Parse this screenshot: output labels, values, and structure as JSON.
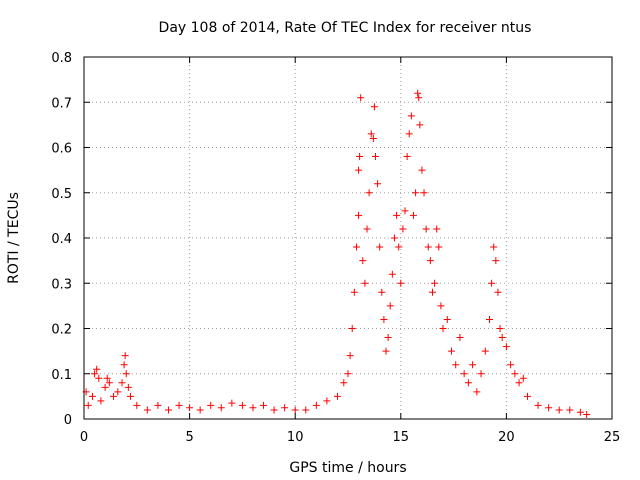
{
  "chart_data": {
    "type": "scatter",
    "title": "Day 108 of 2014, Rate Of TEC Index for receiver ntus",
    "xlabel": "GPS time / hours",
    "ylabel": "ROTI / TECUs",
    "xlim": [
      0,
      25
    ],
    "ylim": [
      0,
      0.8
    ],
    "grid": true,
    "marker": "+",
    "color": "#ff0000",
    "x_ticks": [
      {
        "value": 0,
        "label": "0"
      },
      {
        "value": 5,
        "label": "5"
      },
      {
        "value": 10,
        "label": "10"
      },
      {
        "value": 15,
        "label": "15"
      },
      {
        "value": 20,
        "label": "20"
      },
      {
        "value": 25,
        "label": "25"
      }
    ],
    "y_ticks": [
      {
        "value": 0,
        "label": "0"
      },
      {
        "value": 0.1,
        "label": "0.1"
      },
      {
        "value": 0.2,
        "label": "0.2"
      },
      {
        "value": 0.3,
        "label": "0.3"
      },
      {
        "value": 0.4,
        "label": "0.4"
      },
      {
        "value": 0.5,
        "label": "0.5"
      },
      {
        "value": 0.6,
        "label": "0.6"
      },
      {
        "value": 0.7,
        "label": "0.7"
      },
      {
        "value": 0.8,
        "label": "0.8"
      }
    ],
    "series": [
      {
        "name": "ROTI",
        "points": [
          [
            0.1,
            0.06
          ],
          [
            0.2,
            0.03
          ],
          [
            0.4,
            0.05
          ],
          [
            0.5,
            0.1
          ],
          [
            0.6,
            0.11
          ],
          [
            0.7,
            0.09
          ],
          [
            0.8,
            0.04
          ],
          [
            1.0,
            0.07
          ],
          [
            1.1,
            0.09
          ],
          [
            1.2,
            0.08
          ],
          [
            1.4,
            0.05
          ],
          [
            1.6,
            0.06
          ],
          [
            1.8,
            0.08
          ],
          [
            1.9,
            0.12
          ],
          [
            1.95,
            0.14
          ],
          [
            2.0,
            0.1
          ],
          [
            2.1,
            0.07
          ],
          [
            2.2,
            0.05
          ],
          [
            2.5,
            0.03
          ],
          [
            3.0,
            0.02
          ],
          [
            3.5,
            0.03
          ],
          [
            4.0,
            0.02
          ],
          [
            4.5,
            0.03
          ],
          [
            5.0,
            0.025
          ],
          [
            5.5,
            0.02
          ],
          [
            6.0,
            0.03
          ],
          [
            6.5,
            0.025
          ],
          [
            7.0,
            0.035
          ],
          [
            7.5,
            0.03
          ],
          [
            8.0,
            0.025
          ],
          [
            8.5,
            0.03
          ],
          [
            9.0,
            0.02
          ],
          [
            9.5,
            0.025
          ],
          [
            10.0,
            0.02
          ],
          [
            10.5,
            0.02
          ],
          [
            11.0,
            0.03
          ],
          [
            11.5,
            0.04
          ],
          [
            12.0,
            0.05
          ],
          [
            12.3,
            0.08
          ],
          [
            12.5,
            0.1
          ],
          [
            12.6,
            0.14
          ],
          [
            12.7,
            0.2
          ],
          [
            12.8,
            0.28
          ],
          [
            12.9,
            0.38
          ],
          [
            13.0,
            0.45
          ],
          [
            13.0,
            0.55
          ],
          [
            13.05,
            0.58
          ],
          [
            13.1,
            0.71
          ],
          [
            13.2,
            0.35
          ],
          [
            13.3,
            0.3
          ],
          [
            13.4,
            0.42
          ],
          [
            13.5,
            0.5
          ],
          [
            13.6,
            0.63
          ],
          [
            13.7,
            0.62
          ],
          [
            13.75,
            0.69
          ],
          [
            13.8,
            0.58
          ],
          [
            13.9,
            0.52
          ],
          [
            14.0,
            0.38
          ],
          [
            14.1,
            0.28
          ],
          [
            14.2,
            0.22
          ],
          [
            14.3,
            0.15
          ],
          [
            14.4,
            0.18
          ],
          [
            14.5,
            0.25
          ],
          [
            14.6,
            0.32
          ],
          [
            14.7,
            0.4
          ],
          [
            14.8,
            0.45
          ],
          [
            14.9,
            0.38
          ],
          [
            15.0,
            0.3
          ],
          [
            15.1,
            0.42
          ],
          [
            15.2,
            0.46
          ],
          [
            15.3,
            0.58
          ],
          [
            15.4,
            0.63
          ],
          [
            15.5,
            0.67
          ],
          [
            15.6,
            0.45
          ],
          [
            15.7,
            0.5
          ],
          [
            15.8,
            0.72
          ],
          [
            15.85,
            0.71
          ],
          [
            15.9,
            0.65
          ],
          [
            16.0,
            0.55
          ],
          [
            16.1,
            0.5
          ],
          [
            16.2,
            0.42
          ],
          [
            16.3,
            0.38
          ],
          [
            16.4,
            0.35
          ],
          [
            16.5,
            0.28
          ],
          [
            16.6,
            0.3
          ],
          [
            16.7,
            0.42
          ],
          [
            16.8,
            0.38
          ],
          [
            16.9,
            0.25
          ],
          [
            17.0,
            0.2
          ],
          [
            17.2,
            0.22
          ],
          [
            17.4,
            0.15
          ],
          [
            17.6,
            0.12
          ],
          [
            17.8,
            0.18
          ],
          [
            18.0,
            0.1
          ],
          [
            18.2,
            0.08
          ],
          [
            18.4,
            0.12
          ],
          [
            18.6,
            0.06
          ],
          [
            18.8,
            0.1
          ],
          [
            19.0,
            0.15
          ],
          [
            19.2,
            0.22
          ],
          [
            19.3,
            0.3
          ],
          [
            19.4,
            0.38
          ],
          [
            19.5,
            0.35
          ],
          [
            19.6,
            0.28
          ],
          [
            19.7,
            0.2
          ],
          [
            19.8,
            0.18
          ],
          [
            20.0,
            0.16
          ],
          [
            20.2,
            0.12
          ],
          [
            20.4,
            0.1
          ],
          [
            20.6,
            0.08
          ],
          [
            20.8,
            0.09
          ],
          [
            21.0,
            0.05
          ],
          [
            21.5,
            0.03
          ],
          [
            22.0,
            0.025
          ],
          [
            22.5,
            0.02
          ],
          [
            23.0,
            0.02
          ],
          [
            23.5,
            0.015
          ],
          [
            23.8,
            0.01
          ]
        ]
      }
    ]
  }
}
